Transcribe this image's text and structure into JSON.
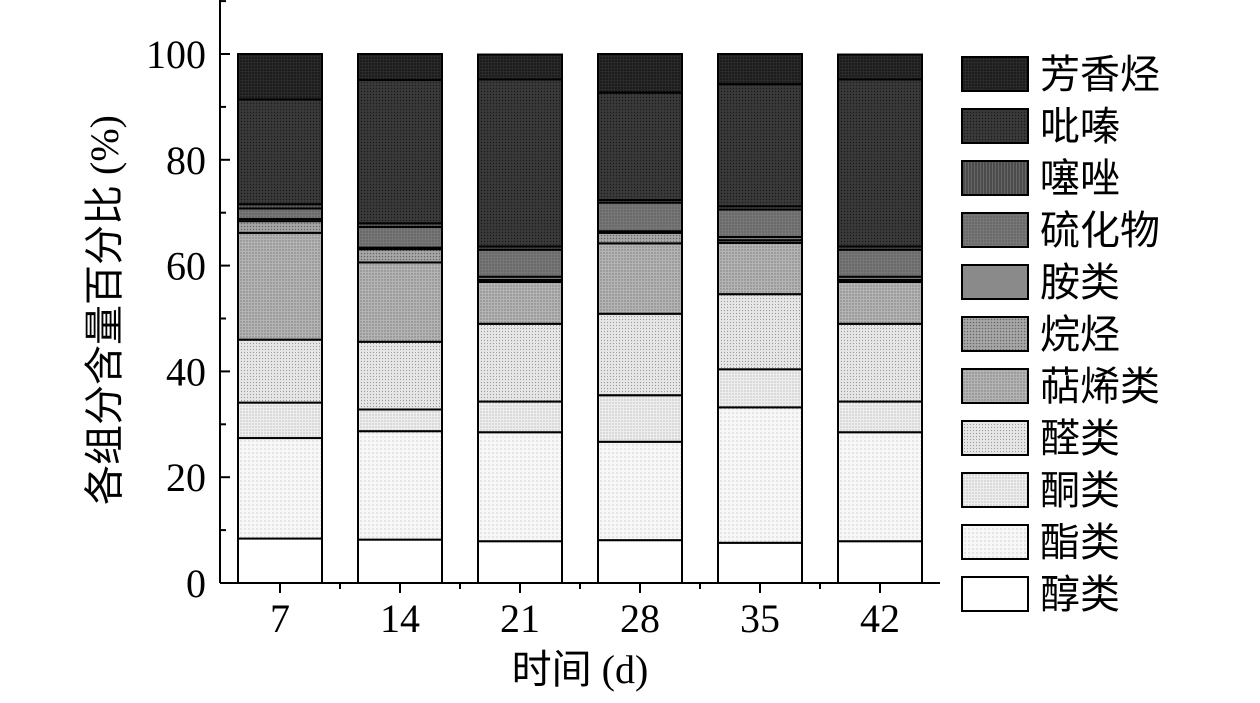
{
  "chart_data": {
    "type": "bar",
    "stacked": true,
    "xlabel": "时间 (d)",
    "ylabel": "各组分含量百分比 (%)",
    "ylim": [
      0,
      110
    ],
    "yticks": [
      0,
      20,
      40,
      60,
      80,
      100
    ],
    "grid": false,
    "legend_position": "right",
    "categories": [
      "7",
      "14",
      "21",
      "28",
      "35",
      "42"
    ],
    "series": [
      {
        "name": "醇类",
        "values": [
          8.4,
          8.2,
          7.9,
          8.1,
          7.6,
          7.9
        ],
        "color": "#ffffff",
        "pattern": "none"
      },
      {
        "name": "酯类",
        "values": [
          19.0,
          20.5,
          20.6,
          18.6,
          25.6,
          20.6
        ],
        "color": "#f4f4f4",
        "pattern": "fine-dots"
      },
      {
        "name": "酮类",
        "values": [
          6.7,
          4.1,
          5.8,
          8.8,
          7.2,
          5.8
        ],
        "color": "#ececec",
        "pattern": "dots"
      },
      {
        "name": "醛类",
        "values": [
          11.9,
          12.8,
          14.7,
          15.4,
          14.2,
          14.7
        ],
        "color": "#e4e4e4",
        "pattern": "dense-dots"
      },
      {
        "name": "萜烯类",
        "values": [
          20.2,
          15.0,
          7.9,
          13.3,
          9.7,
          7.9
        ],
        "color": "#b0b0b0",
        "pattern": "dots"
      },
      {
        "name": "烷烃",
        "values": [
          2.2,
          2.5,
          0.4,
          2.0,
          0.5,
          0.4
        ],
        "color": "#a0a0a0",
        "pattern": "dots"
      },
      {
        "name": "胺类",
        "values": [
          0.4,
          0.3,
          0.6,
          0.3,
          0.6,
          0.6
        ],
        "color": "#888888",
        "pattern": "none"
      },
      {
        "name": "硫化物",
        "values": [
          2.0,
          3.9,
          5.1,
          5.4,
          5.2,
          5.1
        ],
        "color": "#6a6a6a",
        "pattern": "dots"
      },
      {
        "name": "噻唑",
        "values": [
          0.8,
          0.7,
          0.6,
          0.5,
          0.6,
          0.6
        ],
        "color": "#555555",
        "pattern": "vlines"
      },
      {
        "name": "吡嗪",
        "values": [
          19.8,
          27.1,
          31.6,
          20.3,
          23.1,
          31.6
        ],
        "color": "#3c3c3c",
        "pattern": "dark-dots"
      },
      {
        "name": "芳香烃",
        "values": [
          8.6,
          4.9,
          4.7,
          7.3,
          5.7,
          4.7
        ],
        "color": "#2a2a2a",
        "pattern": "dark-dots"
      }
    ]
  }
}
